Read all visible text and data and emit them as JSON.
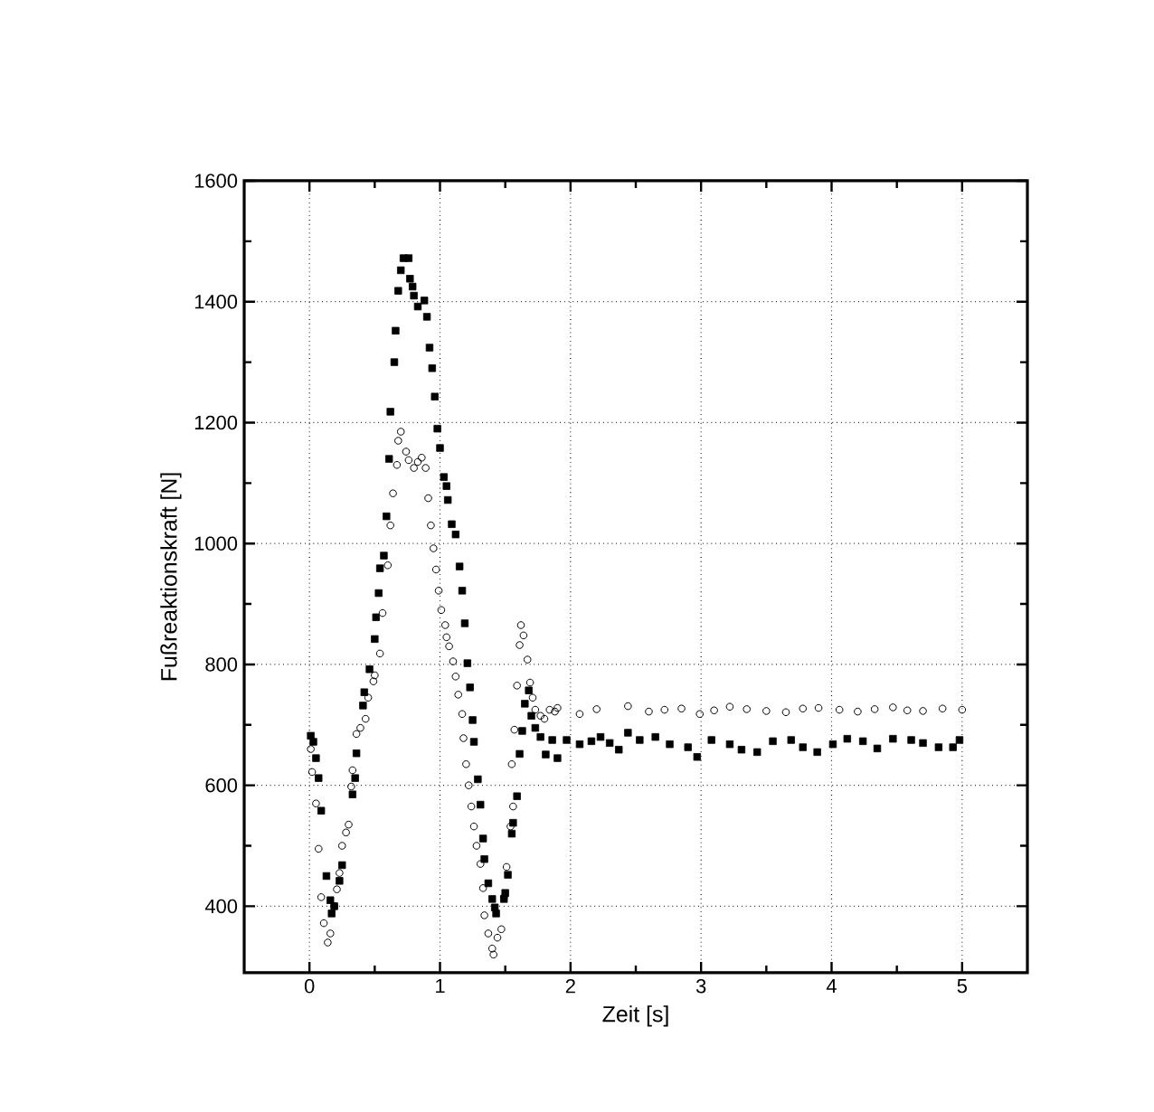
{
  "chart_data": {
    "type": "scatter",
    "xlabel": "Zeit [s]",
    "ylabel": "Fußreaktionskraft [N]",
    "xlim": [
      -0.5,
      5.5
    ],
    "ylim": [
      290,
      1600
    ],
    "xticks": [
      0,
      1,
      2,
      3,
      4,
      5
    ],
    "yticks": [
      400,
      600,
      800,
      1000,
      1200,
      1400,
      1600
    ],
    "grid": true,
    "series": [
      {
        "color": "#000000",
        "marker": "square",
        "x": [
          0.01,
          0.03,
          0.05,
          0.07,
          0.09,
          0.13,
          0.16,
          0.17,
          0.19,
          0.23,
          0.25,
          0.33,
          0.35,
          0.36,
          0.41,
          0.42,
          0.46,
          0.5,
          0.51,
          0.53,
          0.54,
          0.57,
          0.59,
          0.61,
          0.62,
          0.65,
          0.66,
          0.68,
          0.7,
          0.72,
          0.76,
          0.77,
          0.79,
          0.8,
          0.83,
          0.88,
          0.9,
          0.92,
          0.94,
          0.96,
          0.98,
          1.0,
          1.03,
          1.05,
          1.06,
          1.09,
          1.12,
          1.15,
          1.17,
          1.19,
          1.21,
          1.23,
          1.25,
          1.26,
          1.29,
          1.31,
          1.33,
          1.34,
          1.37,
          1.4,
          1.42,
          1.43,
          1.49,
          1.5,
          1.52,
          1.55,
          1.56,
          1.59,
          1.61,
          1.63,
          1.65,
          1.68,
          1.7,
          1.73,
          1.77,
          1.81,
          1.86,
          1.9,
          1.97,
          2.07,
          2.16,
          2.23,
          2.3,
          2.37,
          2.44,
          2.53,
          2.65,
          2.76,
          2.9,
          2.97,
          3.08,
          3.22,
          3.31,
          3.43,
          3.55,
          3.69,
          3.78,
          3.89,
          4.01,
          4.12,
          4.24,
          4.35,
          4.47,
          4.61,
          4.7,
          4.82,
          4.93,
          4.98
        ],
        "values": [
          682,
          672,
          645,
          612,
          558,
          450,
          410,
          388,
          400,
          442,
          468,
          585,
          612,
          653,
          732,
          754,
          792,
          842,
          878,
          918,
          959,
          980,
          1045,
          1140,
          1218,
          1300,
          1352,
          1418,
          1452,
          1472,
          1472,
          1438,
          1425,
          1410,
          1392,
          1402,
          1375,
          1324,
          1290,
          1243,
          1190,
          1158,
          1110,
          1095,
          1072,
          1032,
          1015,
          962,
          922,
          868,
          802,
          762,
          708,
          672,
          610,
          568,
          512,
          478,
          438,
          412,
          398,
          388,
          412,
          422,
          452,
          520,
          538,
          582,
          652,
          690,
          735,
          757,
          715,
          695,
          680,
          651,
          675,
          645,
          675,
          668,
          673,
          680,
          670,
          659,
          687,
          675,
          680,
          668,
          663,
          647,
          675,
          668,
          659,
          655,
          673,
          675,
          663,
          655,
          668,
          677,
          673,
          661,
          677,
          675,
          670,
          663,
          663,
          675
        ]
      },
      {
        "color": "#000000",
        "marker": "circle",
        "x": [
          0.01,
          0.02,
          0.05,
          0.07,
          0.09,
          0.11,
          0.14,
          0.16,
          0.19,
          0.21,
          0.23,
          0.25,
          0.28,
          0.3,
          0.32,
          0.33,
          0.36,
          0.39,
          0.43,
          0.45,
          0.49,
          0.5,
          0.54,
          0.56,
          0.6,
          0.62,
          0.64,
          0.67,
          0.68,
          0.7,
          0.74,
          0.76,
          0.8,
          0.83,
          0.86,
          0.89,
          0.91,
          0.93,
          0.95,
          0.97,
          0.99,
          1.01,
          1.04,
          1.05,
          1.07,
          1.1,
          1.12,
          1.14,
          1.17,
          1.18,
          1.2,
          1.22,
          1.24,
          1.26,
          1.28,
          1.31,
          1.33,
          1.34,
          1.37,
          1.4,
          1.41,
          1.44,
          1.47,
          1.49,
          1.51,
          1.54,
          1.55,
          1.56,
          1.57,
          1.59,
          1.61,
          1.62,
          1.64,
          1.67,
          1.69,
          1.71,
          1.73,
          1.77,
          1.8,
          1.84,
          1.88,
          1.9,
          2.07,
          2.2,
          2.44,
          2.6,
          2.72,
          2.85,
          2.99,
          3.1,
          3.22,
          3.35,
          3.5,
          3.65,
          3.78,
          3.9,
          4.06,
          4.2,
          4.33,
          4.47,
          4.58,
          4.7,
          4.85,
          5.0
        ],
        "values": [
          660,
          622,
          570,
          495,
          415,
          372,
          340,
          355,
          400,
          428,
          455,
          500,
          522,
          535,
          598,
          625,
          685,
          695,
          710,
          745,
          772,
          782,
          818,
          885,
          964,
          1030,
          1083,
          1130,
          1170,
          1185,
          1152,
          1138,
          1125,
          1135,
          1142,
          1125,
          1075,
          1030,
          992,
          957,
          922,
          890,
          865,
          845,
          830,
          805,
          780,
          750,
          718,
          678,
          635,
          600,
          565,
          532,
          500,
          470,
          430,
          385,
          355,
          330,
          320,
          348,
          362,
          415,
          465,
          532,
          635,
          565,
          692,
          765,
          832,
          865,
          848,
          808,
          770,
          745,
          725,
          715,
          710,
          725,
          722,
          728,
          718,
          726,
          731,
          722,
          725,
          727,
          718,
          724,
          730,
          726,
          723,
          721,
          727,
          728,
          725,
          722,
          726,
          729,
          724,
          723,
          727,
          725
        ]
      }
    ]
  }
}
